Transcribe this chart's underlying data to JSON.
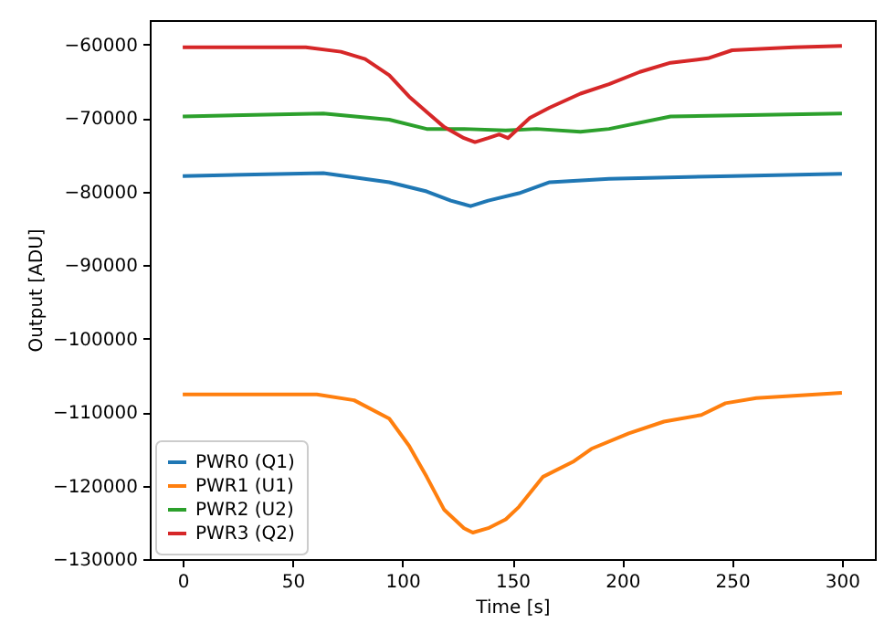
{
  "chart_data": {
    "type": "line",
    "xlabel": "Time [s]",
    "ylabel": "Output [ADU]",
    "xlim": [
      -15,
      315
    ],
    "xticks": [
      0,
      50,
      100,
      150,
      200,
      250,
      300
    ],
    "ylim": [
      -130000,
      -56700
    ],
    "yticks": [
      -130000,
      -120000,
      -110000,
      -100000,
      -90000,
      -80000,
      -70000,
      -60000
    ],
    "grid": false,
    "legend": "bottom left",
    "marker": "none",
    "line_style": "solid",
    "series": [
      {
        "name": "PWR0 (Q1)",
        "color": "#1f77b4",
        "x": [
          0,
          64,
          94,
          111,
          122,
          131,
          139,
          153,
          167,
          194,
          250,
          300
        ],
        "values": [
          -77900,
          -77500,
          -78750,
          -80000,
          -81250,
          -82000,
          -81250,
          -80250,
          -78750,
          -78300,
          -77900,
          -77600
        ]
      },
      {
        "name": "PWR1 (U1)",
        "color": "#ff7f0e",
        "x": [
          0,
          61,
          78,
          94,
          103,
          111,
          119,
          128,
          132,
          139,
          147,
          153,
          164,
          178,
          186,
          203,
          219,
          236,
          247,
          261,
          300
        ],
        "values": [
          -107600,
          -107600,
          -108400,
          -110900,
          -114600,
          -118800,
          -123300,
          -125800,
          -126400,
          -125800,
          -124600,
          -122900,
          -118800,
          -116700,
          -115000,
          -112900,
          -111300,
          -110400,
          -108800,
          -108100,
          -107400
        ]
      },
      {
        "name": "PWR2 (U2)",
        "color": "#2ca02c",
        "x": [
          0,
          64,
          94,
          111,
          128,
          147,
          161,
          181,
          194,
          222,
          300
        ],
        "values": [
          -69800,
          -69400,
          -70250,
          -71500,
          -71500,
          -71700,
          -71500,
          -71900,
          -71500,
          -69800,
          -69400
        ]
      },
      {
        "name": "PWR3 (Q2)",
        "color": "#d62728",
        "x": [
          0,
          56,
          72,
          83,
          94,
          103,
          111,
          119,
          128,
          133,
          139,
          144,
          148,
          158,
          167,
          181,
          194,
          208,
          222,
          239,
          250,
          278,
          300
        ],
        "values": [
          -60400,
          -60400,
          -61000,
          -62000,
          -64200,
          -67100,
          -69200,
          -71250,
          -72750,
          -73300,
          -72750,
          -72250,
          -72750,
          -70000,
          -68600,
          -66700,
          -65400,
          -63750,
          -62500,
          -61900,
          -60800,
          -60400,
          -60200
        ]
      }
    ]
  }
}
